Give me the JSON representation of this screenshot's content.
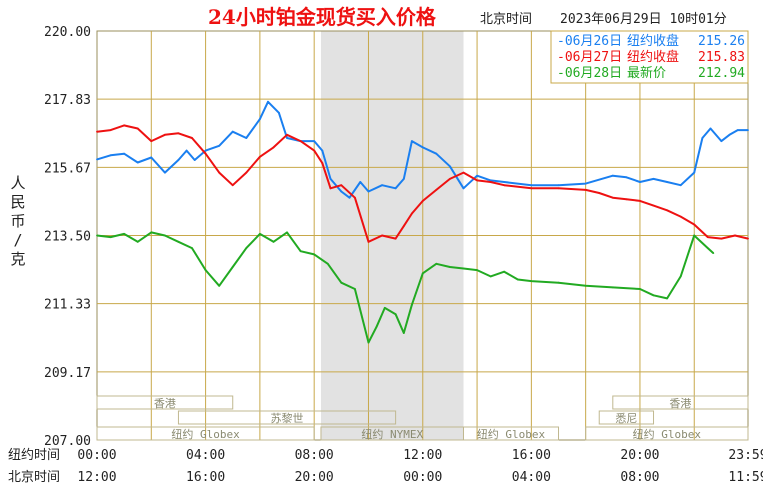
{
  "chart_data": {
    "type": "line",
    "title": "24小时铂金现货买入价格",
    "timezone_label": "北京时间",
    "timestamp": "2023年06月29日 10时01分",
    "ylabel": "人民币/克",
    "ylim": [
      207.0,
      220.0
    ],
    "y_ticks": [
      "220.00",
      "217.83",
      "215.67",
      "213.50",
      "211.33",
      "209.17",
      "207.00"
    ],
    "grid": true,
    "legend_position": "top-right",
    "x_rows": [
      {
        "label": "纽约时间",
        "ticks": [
          "00:00",
          "04:00",
          "08:00",
          "12:00",
          "16:00",
          "20:00",
          "23:59"
        ]
      },
      {
        "label": "北京时间",
        "ticks": [
          "12:00",
          "16:00",
          "20:00",
          "00:00",
          "04:00",
          "08:00",
          "11:59"
        ]
      }
    ],
    "x_range_hours": [
      0,
      23.98
    ],
    "shaded_session": {
      "label": "纽约 NYMEX",
      "start_hour": 8.25,
      "end_hour": 13.5
    },
    "market_sessions": [
      {
        "label": "香港",
        "start_hour": 0,
        "end_hour": 5.0,
        "row": 1
      },
      {
        "label": "苏黎世",
        "start_hour": 3.0,
        "end_hour": 11.0,
        "row": 2
      },
      {
        "label": "纽约 Globex",
        "start_hour": 0,
        "end_hour": 8.0,
        "row": 3
      },
      {
        "label": "纽约 NYMEX",
        "start_hour": 8.25,
        "end_hour": 13.5,
        "row": 3
      },
      {
        "label": "纽约 Globex",
        "start_hour": 13.5,
        "end_hour": 17.0,
        "row": 3
      },
      {
        "label": "悉尼",
        "start_hour": 18.5,
        "end_hour": 20.5,
        "row": 2
      },
      {
        "label": "香港",
        "start_hour": 19.0,
        "end_hour": 23.98,
        "row": 1
      },
      {
        "label": "纽约 Globex",
        "start_hour": 18.0,
        "end_hour": 23.98,
        "row": 3
      }
    ],
    "series": [
      {
        "name": "06月26日",
        "legend_label": "纽约收盘",
        "legend_value": "215.26",
        "color": "#1a7ff0",
        "points": [
          [
            0,
            215.92
          ],
          [
            0.5,
            216.05
          ],
          [
            1.0,
            216.1
          ],
          [
            1.5,
            215.82
          ],
          [
            2.0,
            215.98
          ],
          [
            2.5,
            215.5
          ],
          [
            3.0,
            215.9
          ],
          [
            3.3,
            216.2
          ],
          [
            3.6,
            215.9
          ],
          [
            4.0,
            216.2
          ],
          [
            4.5,
            216.35
          ],
          [
            5.0,
            216.8
          ],
          [
            5.5,
            216.6
          ],
          [
            6.0,
            217.2
          ],
          [
            6.3,
            217.75
          ],
          [
            6.7,
            217.4
          ],
          [
            7.0,
            216.6
          ],
          [
            7.5,
            216.5
          ],
          [
            8.0,
            216.5
          ],
          [
            8.3,
            216.2
          ],
          [
            8.6,
            215.3
          ],
          [
            9.0,
            214.9
          ],
          [
            9.3,
            214.7
          ],
          [
            9.7,
            215.2
          ],
          [
            10.0,
            214.9
          ],
          [
            10.5,
            215.1
          ],
          [
            11.0,
            215.0
          ],
          [
            11.3,
            215.3
          ],
          [
            11.6,
            216.5
          ],
          [
            12.0,
            216.3
          ],
          [
            12.5,
            216.1
          ],
          [
            13.0,
            215.7
          ],
          [
            13.5,
            215.0
          ],
          [
            14.0,
            215.4
          ],
          [
            14.5,
            215.25
          ],
          [
            15.0,
            215.2
          ],
          [
            16.0,
            215.1
          ],
          [
            17.0,
            215.1
          ],
          [
            18.0,
            215.15
          ],
          [
            19.0,
            215.4
          ],
          [
            19.5,
            215.35
          ],
          [
            20.0,
            215.2
          ],
          [
            20.5,
            215.3
          ],
          [
            21.0,
            215.2
          ],
          [
            21.5,
            215.1
          ],
          [
            22.0,
            215.5
          ],
          [
            22.3,
            216.6
          ],
          [
            22.6,
            216.9
          ],
          [
            23.0,
            216.5
          ],
          [
            23.3,
            216.7
          ],
          [
            23.6,
            216.85
          ],
          [
            23.98,
            216.85
          ]
        ]
      },
      {
        "name": "06月27日",
        "legend_label": "纽约收盘",
        "legend_value": "215.83",
        "color": "#ee1111",
        "points": [
          [
            0,
            216.8
          ],
          [
            0.5,
            216.85
          ],
          [
            1.0,
            217.0
          ],
          [
            1.5,
            216.9
          ],
          [
            2.0,
            216.5
          ],
          [
            2.5,
            216.7
          ],
          [
            3.0,
            216.75
          ],
          [
            3.5,
            216.6
          ],
          [
            4.0,
            216.1
          ],
          [
            4.5,
            215.5
          ],
          [
            5.0,
            215.1
          ],
          [
            5.5,
            215.5
          ],
          [
            6.0,
            216.0
          ],
          [
            6.5,
            216.3
          ],
          [
            7.0,
            216.7
          ],
          [
            7.5,
            216.5
          ],
          [
            8.0,
            216.2
          ],
          [
            8.3,
            215.8
          ],
          [
            8.6,
            215.0
          ],
          [
            9.0,
            215.1
          ],
          [
            9.5,
            214.7
          ],
          [
            10.0,
            213.3
          ],
          [
            10.5,
            213.5
          ],
          [
            11.0,
            213.4
          ],
          [
            11.3,
            213.8
          ],
          [
            11.6,
            214.2
          ],
          [
            12.0,
            214.6
          ],
          [
            12.5,
            214.95
          ],
          [
            13.0,
            215.3
          ],
          [
            13.5,
            215.5
          ],
          [
            14.0,
            215.25
          ],
          [
            14.5,
            215.2
          ],
          [
            15.0,
            215.1
          ],
          [
            16.0,
            215.0
          ],
          [
            17.0,
            215.0
          ],
          [
            18.0,
            214.95
          ],
          [
            18.5,
            214.85
          ],
          [
            19.0,
            214.7
          ],
          [
            19.5,
            214.65
          ],
          [
            20.0,
            214.6
          ],
          [
            20.5,
            214.45
          ],
          [
            21.0,
            214.3
          ],
          [
            21.5,
            214.1
          ],
          [
            22.0,
            213.85
          ],
          [
            22.5,
            213.45
          ],
          [
            23.0,
            213.4
          ],
          [
            23.5,
            213.5
          ],
          [
            23.98,
            213.4
          ]
        ]
      },
      {
        "name": "06月28日",
        "legend_label": "最新价",
        "legend_value": "212.94",
        "color": "#22aa22",
        "points": [
          [
            0,
            213.5
          ],
          [
            0.5,
            213.45
          ],
          [
            1.0,
            213.55
          ],
          [
            1.5,
            213.3
          ],
          [
            2.0,
            213.6
          ],
          [
            2.5,
            213.5
          ],
          [
            3.0,
            213.3
          ],
          [
            3.5,
            213.1
          ],
          [
            4.0,
            212.4
          ],
          [
            4.5,
            211.9
          ],
          [
            5.0,
            212.5
          ],
          [
            5.5,
            213.1
          ],
          [
            6.0,
            213.55
          ],
          [
            6.5,
            213.3
          ],
          [
            7.0,
            213.6
          ],
          [
            7.5,
            213.0
          ],
          [
            8.0,
            212.9
          ],
          [
            8.5,
            212.6
          ],
          [
            9.0,
            212.0
          ],
          [
            9.5,
            211.8
          ],
          [
            10.0,
            210.1
          ],
          [
            10.3,
            210.6
          ],
          [
            10.6,
            211.2
          ],
          [
            11.0,
            211.0
          ],
          [
            11.3,
            210.4
          ],
          [
            11.6,
            211.3
          ],
          [
            12.0,
            212.3
          ],
          [
            12.5,
            212.6
          ],
          [
            13.0,
            212.5
          ],
          [
            13.5,
            212.45
          ],
          [
            14.0,
            212.4
          ],
          [
            14.5,
            212.2
          ],
          [
            15.0,
            212.35
          ],
          [
            15.5,
            212.1
          ],
          [
            16.0,
            212.05
          ],
          [
            17.0,
            212.0
          ],
          [
            18.0,
            211.9
          ],
          [
            19.0,
            211.85
          ],
          [
            20.0,
            211.8
          ],
          [
            20.5,
            211.6
          ],
          [
            21.0,
            211.5
          ],
          [
            21.5,
            212.2
          ],
          [
            22.0,
            213.5
          ],
          [
            22.5,
            213.1
          ],
          [
            22.7,
            212.94
          ]
        ]
      }
    ]
  }
}
